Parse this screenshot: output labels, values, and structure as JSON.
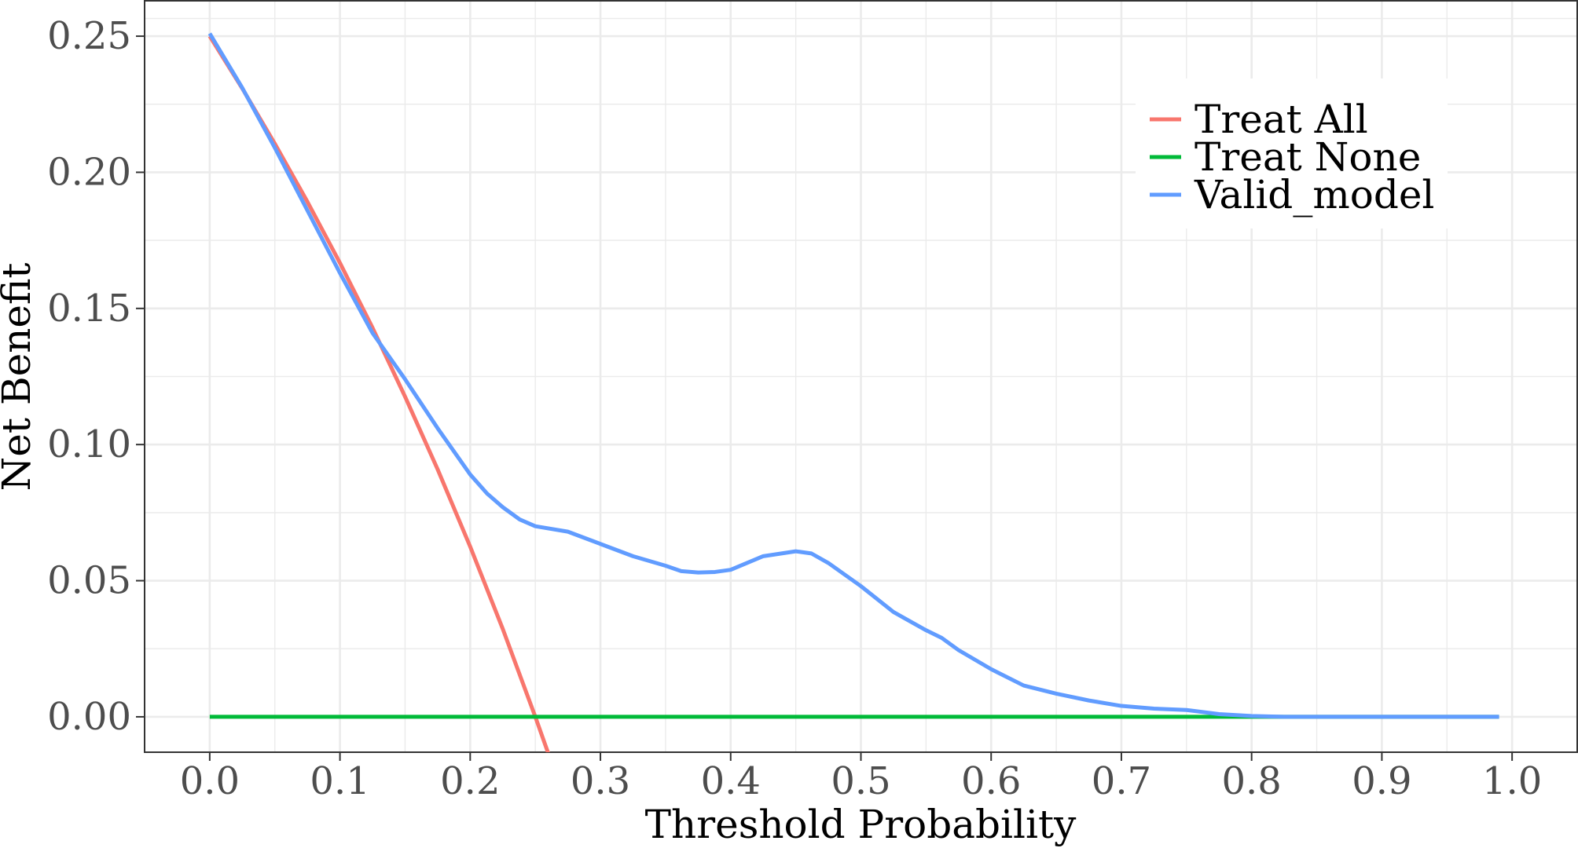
{
  "chart_data": {
    "type": "line",
    "title": "",
    "xlabel": "Threshold Probability",
    "ylabel": "Net Benefit",
    "xlim": [
      -0.05,
      1.05
    ],
    "ylim": [
      -0.013,
      0.263
    ],
    "x_ticks": [
      "0.0",
      "0.1",
      "0.2",
      "0.3",
      "0.4",
      "0.5",
      "0.6",
      "0.7",
      "0.8",
      "0.9",
      "1.0"
    ],
    "y_ticks": [
      "0.00",
      "0.05",
      "0.10",
      "0.15",
      "0.20",
      "0.25"
    ],
    "grid": true,
    "legend_position": "top-right",
    "series": [
      {
        "name": "Treat All",
        "color": "#F8766D",
        "x": [
          0.0,
          0.025,
          0.05,
          0.075,
          0.1,
          0.125,
          0.15,
          0.175,
          0.2,
          0.225,
          0.25,
          0.26
        ],
        "y": [
          0.25,
          0.2308,
          0.2105,
          0.1892,
          0.1667,
          0.1429,
          0.1176,
          0.0909,
          0.0625,
          0.0323,
          0.0,
          -0.0135
        ]
      },
      {
        "name": "Treat None",
        "color": "#00BA38",
        "x": [
          0.0,
          0.99
        ],
        "y": [
          0.0,
          0.0
        ]
      },
      {
        "name": "Valid_model",
        "color": "#619CFF",
        "x": [
          0.0,
          0.025,
          0.05,
          0.075,
          0.1,
          0.125,
          0.15,
          0.175,
          0.2,
          0.213,
          0.225,
          0.238,
          0.25,
          0.275,
          0.3,
          0.325,
          0.35,
          0.362,
          0.375,
          0.388,
          0.4,
          0.425,
          0.45,
          0.462,
          0.475,
          0.5,
          0.525,
          0.55,
          0.562,
          0.575,
          0.6,
          0.625,
          0.65,
          0.675,
          0.7,
          0.725,
          0.75,
          0.775,
          0.8,
          0.825,
          0.85,
          0.875,
          0.9,
          0.925,
          0.95,
          0.975,
          0.99
        ],
        "y": [
          0.251,
          0.231,
          0.209,
          0.186,
          0.163,
          0.141,
          0.124,
          0.106,
          0.089,
          0.082,
          0.077,
          0.0725,
          0.07,
          0.068,
          0.0635,
          0.059,
          0.0555,
          0.0535,
          0.053,
          0.0532,
          0.054,
          0.059,
          0.0608,
          0.06,
          0.0565,
          0.048,
          0.0385,
          0.0318,
          0.029,
          0.0245,
          0.0175,
          0.0115,
          0.0085,
          0.006,
          0.004,
          0.003,
          0.0025,
          0.001,
          0.0003,
          0.0,
          0.0,
          0.0,
          0.0,
          0.0,
          0.0,
          0.0,
          0.0
        ]
      }
    ]
  }
}
